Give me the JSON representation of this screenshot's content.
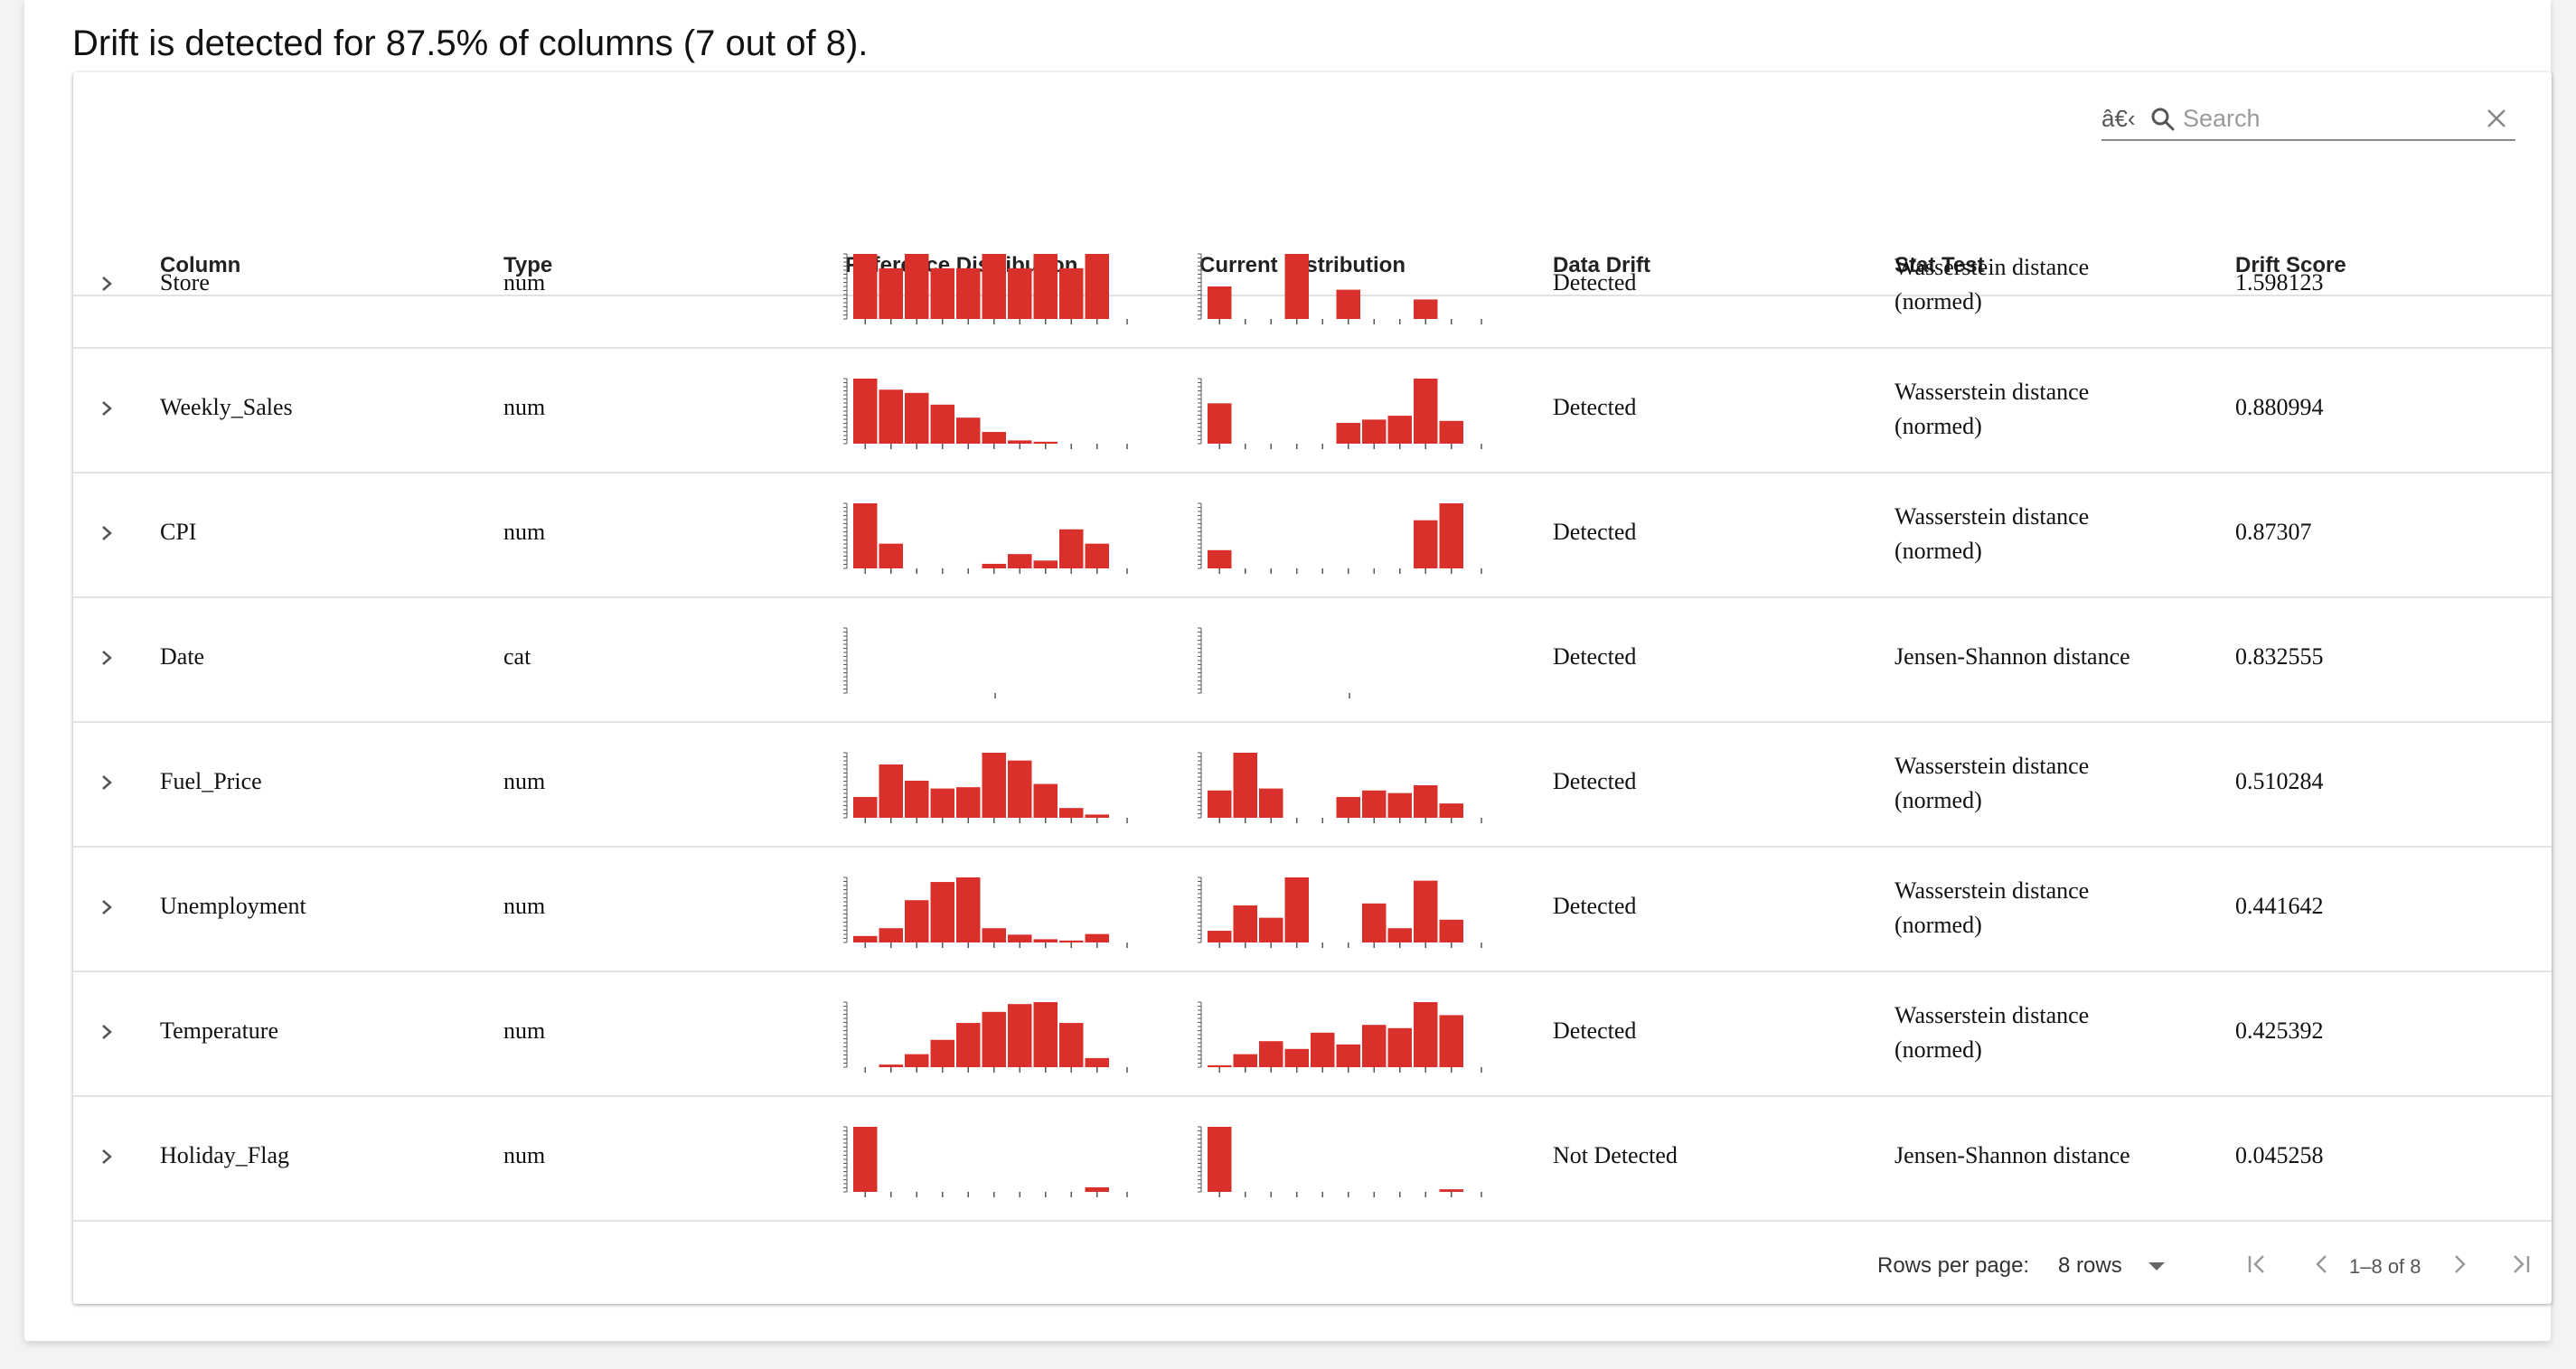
{
  "summary": "Drift is detected for 87.5% of columns (7 out of 8).",
  "search": {
    "prefix_glyph": "â€‹",
    "placeholder": "Search"
  },
  "columns": [
    "Column",
    "Type",
    "Reference Distribution",
    "Current Distribution",
    "Data Drift",
    "Stat Test",
    "Drift Score"
  ],
  "colors": {
    "bar": "#d9302b",
    "axis": "#555555"
  },
  "rows": [
    {
      "column": "Store",
      "type": "num",
      "drift": "Detected",
      "stat": [
        "Wasserstein distance",
        "(normed)"
      ],
      "score": "1.598123",
      "ref": [
        1,
        0.78,
        1,
        0.78,
        0.78,
        1,
        0.78,
        1,
        0.78,
        1
      ],
      "cur": [
        0.5,
        0,
        0,
        1,
        0,
        0.45,
        0,
        0,
        0.3,
        0
      ]
    },
    {
      "column": "Weekly_Sales",
      "type": "num",
      "drift": "Detected",
      "stat": [
        "Wasserstein distance",
        "(normed)"
      ],
      "score": "0.880994",
      "ref": [
        1,
        0.83,
        0.78,
        0.6,
        0.4,
        0.18,
        0.05,
        0.03,
        0,
        0
      ],
      "cur": [
        0.62,
        0,
        0,
        0,
        0,
        0.32,
        0.37,
        0.43,
        1,
        0.35
      ]
    },
    {
      "column": "CPI",
      "type": "num",
      "drift": "Detected",
      "stat": [
        "Wasserstein distance",
        "(normed)"
      ],
      "score": "0.87307",
      "ref": [
        1,
        0.38,
        0,
        0,
        0,
        0.07,
        0.22,
        0.12,
        0.6,
        0.38
      ],
      "cur": [
        0.28,
        0,
        0,
        0,
        0,
        0,
        0,
        0,
        0.74,
        1
      ]
    },
    {
      "column": "Date",
      "type": "cat",
      "drift": "Detected",
      "stat": [
        "Jensen-Shannon distance"
      ],
      "score": "0.832555",
      "ref": [],
      "cur": []
    },
    {
      "column": "Fuel_Price",
      "type": "num",
      "drift": "Detected",
      "stat": [
        "Wasserstein distance",
        "(normed)"
      ],
      "score": "0.510284",
      "ref": [
        0.32,
        0.82,
        0.57,
        0.45,
        0.47,
        1,
        0.88,
        0.52,
        0.15,
        0.05
      ],
      "cur": [
        0.42,
        1,
        0.45,
        0,
        0,
        0.32,
        0.42,
        0.38,
        0.5,
        0.22
      ]
    },
    {
      "column": "Unemployment",
      "type": "num",
      "drift": "Detected",
      "stat": [
        "Wasserstein distance",
        "(normed)"
      ],
      "score": "0.441642",
      "ref": [
        0.1,
        0.22,
        0.65,
        0.93,
        1,
        0.22,
        0.12,
        0.05,
        0.03,
        0.13
      ],
      "cur": [
        0.18,
        0.57,
        0.38,
        1,
        0,
        0,
        0.6,
        0.22,
        0.95,
        0.35
      ]
    },
    {
      "column": "Temperature",
      "type": "num",
      "drift": "Detected",
      "stat": [
        "Wasserstein distance",
        "(normed)"
      ],
      "score": "0.425392",
      "ref": [
        0,
        0.04,
        0.2,
        0.42,
        0.68,
        0.85,
        0.97,
        1,
        0.68,
        0.14
      ],
      "cur": [
        0.03,
        0.2,
        0.4,
        0.28,
        0.53,
        0.35,
        0.65,
        0.6,
        1,
        0.8
      ]
    },
    {
      "column": "Holiday_Flag",
      "type": "num",
      "drift": "Not Detected",
      "stat": [
        "Jensen-Shannon distance"
      ],
      "score": "0.045258",
      "ref": [
        1,
        0,
        0,
        0,
        0,
        0,
        0,
        0,
        0,
        0.07
      ],
      "cur": [
        1,
        0,
        0,
        0,
        0,
        0,
        0,
        0,
        0,
        0.04
      ]
    }
  ],
  "footer": {
    "rows_per_page_label": "Rows per page:",
    "rows_per_page_value": "8 rows",
    "range": "1–8 of 8"
  }
}
